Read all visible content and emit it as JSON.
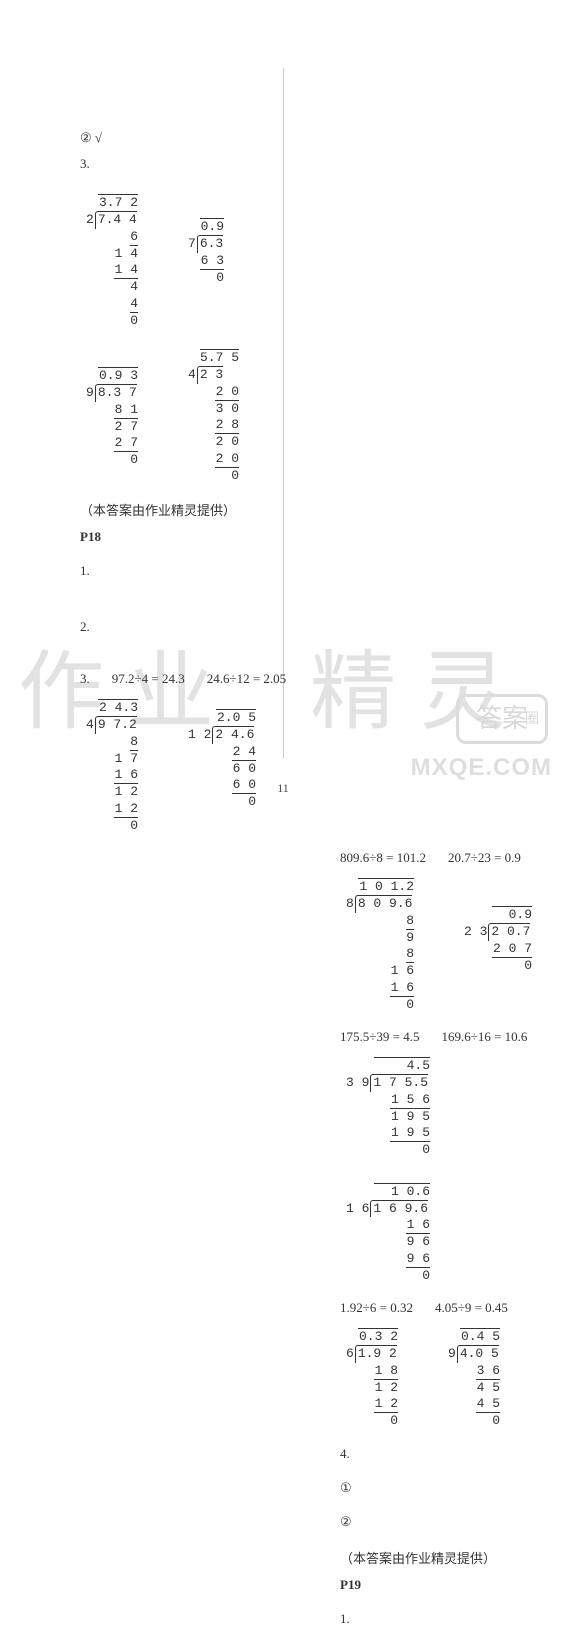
{
  "left": {
    "item2": "②  √",
    "item3": "3.",
    "credit": "（本答案由作业精灵提供）",
    "p18": "P18",
    "one": "1.",
    "two": "2.",
    "three_eq": {
      "label": "3.",
      "a": "97.2÷4 = 24.3",
      "b": "24.6÷12 = 2.05"
    },
    "ld_372": {
      "q": "3.7 2",
      "divisor": "2",
      "dividend": "7.4 4",
      "steps": [
        "6",
        "1 4",
        "1 4",
        "4",
        "4",
        "0"
      ]
    },
    "ld_09": {
      "q": "0.9",
      "divisor": "7",
      "dividend": "6.3",
      "steps": [
        "6 3",
        "0"
      ]
    },
    "ld_093": {
      "q": "0.9 3",
      "divisor": "9",
      "dividend": "8.3 7",
      "steps": [
        "8 1",
        "2 7",
        "2 7",
        "0"
      ]
    },
    "ld_575": {
      "q": "5.7 5",
      "divisor": "4",
      "dividend": "2 3",
      "steps": [
        "2 0",
        "3 0",
        "2 8",
        "2 0",
        "2 0",
        "0"
      ]
    },
    "ld_243": {
      "q": "2 4.3",
      "divisor": "4",
      "dividend": "9 7.2",
      "steps": [
        "8",
        "1 7",
        "1 6",
        "1 2",
        "1 2",
        "0"
      ]
    },
    "ld_205": {
      "q": "2.0 5",
      "divisor": "1 2",
      "dividend": "2 4.6",
      "steps": [
        "2 4",
        "6 0",
        "6 0",
        "0"
      ]
    }
  },
  "right": {
    "row1": {
      "a": "809.6÷8 = 101.2",
      "b": "20.7÷23 = 0.9"
    },
    "row2": {
      "a": "175.5÷39 = 4.5",
      "b": "169.6÷16 = 10.6"
    },
    "row3": {
      "a": "1.92÷6 = 0.32",
      "b": "4.05÷9 = 0.45"
    },
    "four": "4.",
    "c1": "①",
    "c2": "②",
    "credit": "（本答案由作业精灵提供）",
    "p19": "P19",
    "one": "1.",
    "ld_1012": {
      "q": "1 0 1.2",
      "divisor": "8",
      "dividend": "8 0 9.6",
      "steps": [
        "8",
        "9",
        "8",
        "1 6",
        "1 6",
        "0"
      ]
    },
    "ld_09b": {
      "q": "0.9",
      "divisor": "2 3",
      "dividend": "2 0.7",
      "steps": [
        "2 0 7",
        "0"
      ]
    },
    "ld_45": {
      "q": "4.5",
      "divisor": "3 9",
      "dividend": "1 7 5.5",
      "steps": [
        "1 5 6",
        "1 9 5",
        "1 9 5",
        "0"
      ]
    },
    "ld_106": {
      "q": "1 0.6",
      "divisor": "1 6",
      "dividend": "1 6 9.6",
      "steps": [
        "1 6",
        "9 6",
        "9 6",
        "0"
      ]
    },
    "ld_032": {
      "q": "0.3 2",
      "divisor": "6",
      "dividend": "1.9 2",
      "steps": [
        "1 8",
        "1 2",
        "1 2",
        "0"
      ]
    },
    "ld_045": {
      "q": "0.4 5",
      "divisor": "9",
      "dividend": "4.0 5",
      "steps": [
        "3 6",
        "4 5",
        "4 5",
        "0"
      ]
    }
  },
  "watermarks": {
    "left": "作业",
    "right": "精灵"
  },
  "badge": {
    "text": "答案",
    "sub": "圈"
  },
  "site": "MXQE.COM",
  "pagenum": "11"
}
